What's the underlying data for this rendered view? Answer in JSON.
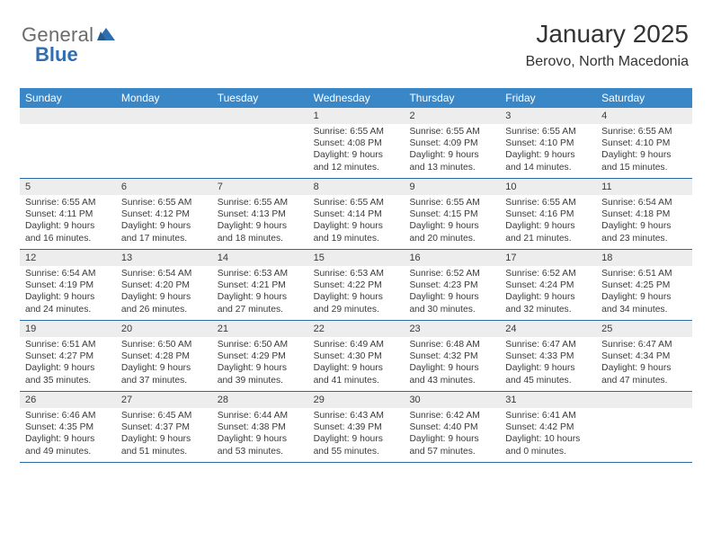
{
  "logo": {
    "word1": "General",
    "word2": "Blue"
  },
  "title": "January 2025",
  "location": "Berovo, North Macedonia",
  "colors": {
    "dow_bg": "#3a87c7",
    "dow_text": "#ffffff",
    "daynum_bg": "#ededed",
    "rule": "#2d6aa3",
    "logo_blue": "#2f6fb0",
    "logo_gray": "#6b6b6b",
    "text": "#333333"
  },
  "dow": [
    "Sunday",
    "Monday",
    "Tuesday",
    "Wednesday",
    "Thursday",
    "Friday",
    "Saturday"
  ],
  "weeks": [
    [
      {
        "n": "",
        "lines": []
      },
      {
        "n": "",
        "lines": []
      },
      {
        "n": "",
        "lines": []
      },
      {
        "n": "1",
        "lines": [
          "Sunrise: 6:55 AM",
          "Sunset: 4:08 PM",
          "Daylight: 9 hours and 12 minutes."
        ]
      },
      {
        "n": "2",
        "lines": [
          "Sunrise: 6:55 AM",
          "Sunset: 4:09 PM",
          "Daylight: 9 hours and 13 minutes."
        ]
      },
      {
        "n": "3",
        "lines": [
          "Sunrise: 6:55 AM",
          "Sunset: 4:10 PM",
          "Daylight: 9 hours and 14 minutes."
        ]
      },
      {
        "n": "4",
        "lines": [
          "Sunrise: 6:55 AM",
          "Sunset: 4:10 PM",
          "Daylight: 9 hours and 15 minutes."
        ]
      }
    ],
    [
      {
        "n": "5",
        "lines": [
          "Sunrise: 6:55 AM",
          "Sunset: 4:11 PM",
          "Daylight: 9 hours and 16 minutes."
        ]
      },
      {
        "n": "6",
        "lines": [
          "Sunrise: 6:55 AM",
          "Sunset: 4:12 PM",
          "Daylight: 9 hours and 17 minutes."
        ]
      },
      {
        "n": "7",
        "lines": [
          "Sunrise: 6:55 AM",
          "Sunset: 4:13 PM",
          "Daylight: 9 hours and 18 minutes."
        ]
      },
      {
        "n": "8",
        "lines": [
          "Sunrise: 6:55 AM",
          "Sunset: 4:14 PM",
          "Daylight: 9 hours and 19 minutes."
        ]
      },
      {
        "n": "9",
        "lines": [
          "Sunrise: 6:55 AM",
          "Sunset: 4:15 PM",
          "Daylight: 9 hours and 20 minutes."
        ]
      },
      {
        "n": "10",
        "lines": [
          "Sunrise: 6:55 AM",
          "Sunset: 4:16 PM",
          "Daylight: 9 hours and 21 minutes."
        ]
      },
      {
        "n": "11",
        "lines": [
          "Sunrise: 6:54 AM",
          "Sunset: 4:18 PM",
          "Daylight: 9 hours and 23 minutes."
        ]
      }
    ],
    [
      {
        "n": "12",
        "lines": [
          "Sunrise: 6:54 AM",
          "Sunset: 4:19 PM",
          "Daylight: 9 hours and 24 minutes."
        ]
      },
      {
        "n": "13",
        "lines": [
          "Sunrise: 6:54 AM",
          "Sunset: 4:20 PM",
          "Daylight: 9 hours and 26 minutes."
        ]
      },
      {
        "n": "14",
        "lines": [
          "Sunrise: 6:53 AM",
          "Sunset: 4:21 PM",
          "Daylight: 9 hours and 27 minutes."
        ]
      },
      {
        "n": "15",
        "lines": [
          "Sunrise: 6:53 AM",
          "Sunset: 4:22 PM",
          "Daylight: 9 hours and 29 minutes."
        ]
      },
      {
        "n": "16",
        "lines": [
          "Sunrise: 6:52 AM",
          "Sunset: 4:23 PM",
          "Daylight: 9 hours and 30 minutes."
        ]
      },
      {
        "n": "17",
        "lines": [
          "Sunrise: 6:52 AM",
          "Sunset: 4:24 PM",
          "Daylight: 9 hours and 32 minutes."
        ]
      },
      {
        "n": "18",
        "lines": [
          "Sunrise: 6:51 AM",
          "Sunset: 4:25 PM",
          "Daylight: 9 hours and 34 minutes."
        ]
      }
    ],
    [
      {
        "n": "19",
        "lines": [
          "Sunrise: 6:51 AM",
          "Sunset: 4:27 PM",
          "Daylight: 9 hours and 35 minutes."
        ]
      },
      {
        "n": "20",
        "lines": [
          "Sunrise: 6:50 AM",
          "Sunset: 4:28 PM",
          "Daylight: 9 hours and 37 minutes."
        ]
      },
      {
        "n": "21",
        "lines": [
          "Sunrise: 6:50 AM",
          "Sunset: 4:29 PM",
          "Daylight: 9 hours and 39 minutes."
        ]
      },
      {
        "n": "22",
        "lines": [
          "Sunrise: 6:49 AM",
          "Sunset: 4:30 PM",
          "Daylight: 9 hours and 41 minutes."
        ]
      },
      {
        "n": "23",
        "lines": [
          "Sunrise: 6:48 AM",
          "Sunset: 4:32 PM",
          "Daylight: 9 hours and 43 minutes."
        ]
      },
      {
        "n": "24",
        "lines": [
          "Sunrise: 6:47 AM",
          "Sunset: 4:33 PM",
          "Daylight: 9 hours and 45 minutes."
        ]
      },
      {
        "n": "25",
        "lines": [
          "Sunrise: 6:47 AM",
          "Sunset: 4:34 PM",
          "Daylight: 9 hours and 47 minutes."
        ]
      }
    ],
    [
      {
        "n": "26",
        "lines": [
          "Sunrise: 6:46 AM",
          "Sunset: 4:35 PM",
          "Daylight: 9 hours and 49 minutes."
        ]
      },
      {
        "n": "27",
        "lines": [
          "Sunrise: 6:45 AM",
          "Sunset: 4:37 PM",
          "Daylight: 9 hours and 51 minutes."
        ]
      },
      {
        "n": "28",
        "lines": [
          "Sunrise: 6:44 AM",
          "Sunset: 4:38 PM",
          "Daylight: 9 hours and 53 minutes."
        ]
      },
      {
        "n": "29",
        "lines": [
          "Sunrise: 6:43 AM",
          "Sunset: 4:39 PM",
          "Daylight: 9 hours and 55 minutes."
        ]
      },
      {
        "n": "30",
        "lines": [
          "Sunrise: 6:42 AM",
          "Sunset: 4:40 PM",
          "Daylight: 9 hours and 57 minutes."
        ]
      },
      {
        "n": "31",
        "lines": [
          "Sunrise: 6:41 AM",
          "Sunset: 4:42 PM",
          "Daylight: 10 hours and 0 minutes."
        ]
      },
      {
        "n": "",
        "lines": []
      }
    ]
  ]
}
